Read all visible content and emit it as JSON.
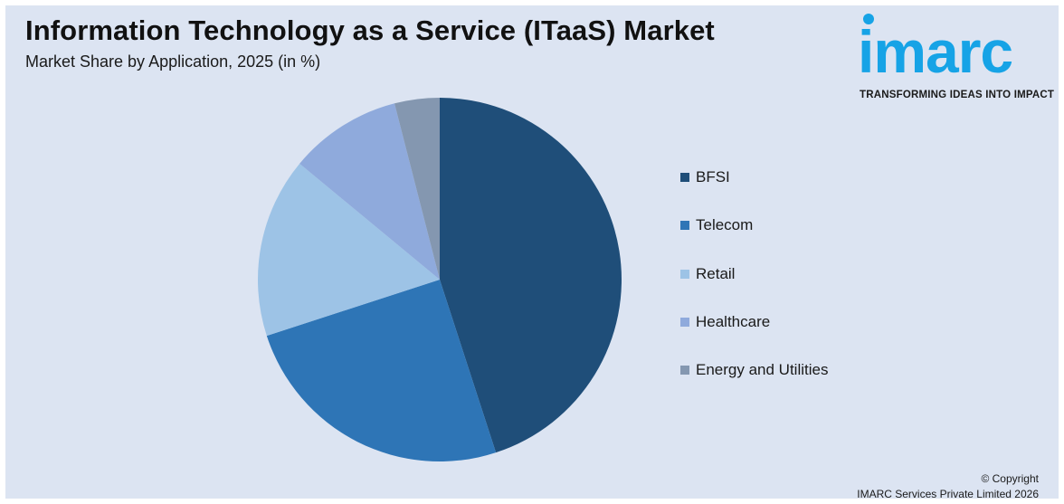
{
  "header": {
    "title": "Information Technology as a Service (ITaaS) Market",
    "subtitle": "Market Share by Application, 2025 (in %)"
  },
  "logo": {
    "word": "imarc",
    "tagline": "TRANSFORMING IDEAS INTO IMPACT",
    "color": "#16a3e6"
  },
  "chart_data": {
    "type": "pie",
    "title": "Information Technology as a Service (ITaaS) Market",
    "subtitle": "Market Share by Application, 2025 (in %)",
    "start_angle": "12 o'clock",
    "direction": "clockwise",
    "legend_position": "right",
    "slices": [
      {
        "label": "BFSI",
        "value": 45,
        "color": "#1f4e79"
      },
      {
        "label": "Telecom",
        "value": 25,
        "color": "#2e75b6"
      },
      {
        "label": "Retail",
        "value": 16,
        "color": "#9dc3e6"
      },
      {
        "label": "Healthcare",
        "value": 10,
        "color": "#8faadc"
      },
      {
        "label": "Energy and Utilities",
        "value": 4,
        "color": "#8497b0"
      }
    ]
  },
  "footer": {
    "copyright_line1": "© Copyright",
    "copyright_line2": "IMARC Services Private Limited 2026"
  }
}
